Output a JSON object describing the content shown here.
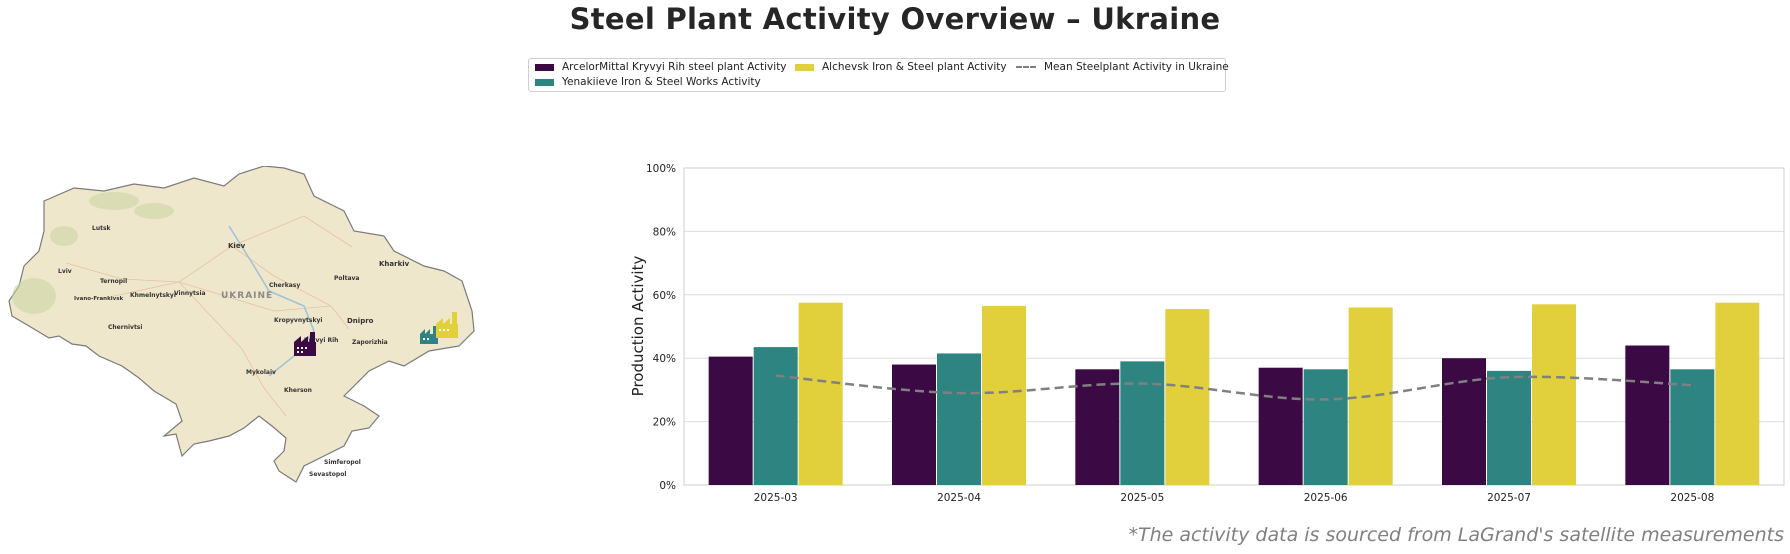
{
  "title": "Steel Plant Activity Overview – Ukraine",
  "legend": {
    "items": [
      {
        "label": "ArcelorMittal Kryvyi Rih steel plant Activity",
        "color": "#3b0a45"
      },
      {
        "label": "Yenakiieve Iron & Steel Works Activity",
        "color": "#2e8480"
      },
      {
        "label": "Alchevsk Iron & Steel plant Activity",
        "color": "#e1cf3b"
      },
      {
        "label": "Mean Steelplant Activity in Ukraine",
        "color": "#808080"
      }
    ]
  },
  "map": {
    "country_label": "UKRAINE",
    "cities": [
      "Lutsk",
      "Kiev",
      "Kharkiv",
      "Lviv",
      "Ternopil",
      "Khmelnytskyi",
      "Vinnytsia",
      "Cherkasy",
      "Poltava",
      "Ivano-Frankivsk",
      "Chernivtsi",
      "Kropyvnytskyi",
      "Dnipro",
      "Kryvyi Rih",
      "Zaporizhia",
      "Mykolaiv",
      "Kherson",
      "Simferopol",
      "Sevastopol"
    ],
    "markers": [
      {
        "name": "ArcelorMittal Kryvyi Rih",
        "color": "#3b0a45",
        "icon": "factory-icon"
      },
      {
        "name": "Yenakiieve Iron & Steel Works",
        "color": "#2e8480",
        "icon": "factory-icon"
      },
      {
        "name": "Alchevsk Iron & Steel plant",
        "color": "#e1cf3b",
        "icon": "factory-icon"
      }
    ]
  },
  "chart_data": {
    "type": "bar",
    "categories": [
      "2025-03",
      "2025-04",
      "2025-05",
      "2025-06",
      "2025-07",
      "2025-08"
    ],
    "series": [
      {
        "name": "ArcelorMittal Kryvyi Rih steel plant Activity",
        "color": "#3b0a45",
        "values": [
          40.5,
          38,
          36.5,
          37,
          40,
          44
        ]
      },
      {
        "name": "Yenakiieve Iron & Steel Works Activity",
        "color": "#2e8480",
        "values": [
          43.5,
          41.5,
          39,
          36.5,
          36,
          36.5
        ]
      },
      {
        "name": "Alchevsk Iron & Steel plant Activity",
        "color": "#e1cf3b",
        "values": [
          57.5,
          56.5,
          55.5,
          56,
          57,
          57.5
        ]
      }
    ],
    "line": {
      "name": "Mean Steelplant Activity in Ukraine",
      "color": "#808080",
      "style": "dashed",
      "values": [
        34.5,
        29,
        32,
        27,
        34,
        31.5
      ]
    },
    "ylabel": "Production Activity",
    "xlabel": "",
    "ylim": [
      0,
      100
    ],
    "yticks": [
      "0%",
      "20%",
      "40%",
      "60%",
      "80%",
      "100%"
    ],
    "grid": "horizontal"
  },
  "footnote": "*The activity data is sourced from LaGrand's satellite measurements"
}
